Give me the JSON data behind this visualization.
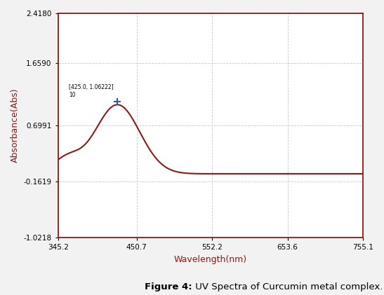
{
  "title_bold": "Figure 4:",
  "title_rest": " UV Spectra of Curcumin metal complex.",
  "xlabel": "Wavelength(nm)",
  "ylabel": "Absorbance(Abs)",
  "xlabel_color": "#8B1A1A",
  "ylabel_color": "#8B1A1A",
  "line_color": "#8B1A1A",
  "axis_color": "#8B1A1A",
  "grid_color": "#c8c8c8",
  "bg_color": "#ffffff",
  "outer_bg": "#f2f2f2",
  "ytick_vals": [
    2.418,
    1.659,
    0.6991,
    -0.1619,
    -1.0218
  ],
  "ytick_labels": [
    "2.4180",
    "1.6590",
    "0.6991",
    "-0.1619",
    "-1.0218"
  ],
  "xtick_vals": [
    345.2,
    450.7,
    552.2,
    653.6,
    755.1
  ],
  "xtick_labels": [
    "345.2",
    "450.7",
    "552.2",
    "653.6",
    "755.1"
  ],
  "xlim": [
    345.2,
    755.1
  ],
  "ylim": [
    -1.0218,
    2.418
  ],
  "ann_text": "[425.0, 1.06222]\n10",
  "peak_x": 425.0,
  "peak_y": 1.0622,
  "marker_color": "#3355aa"
}
